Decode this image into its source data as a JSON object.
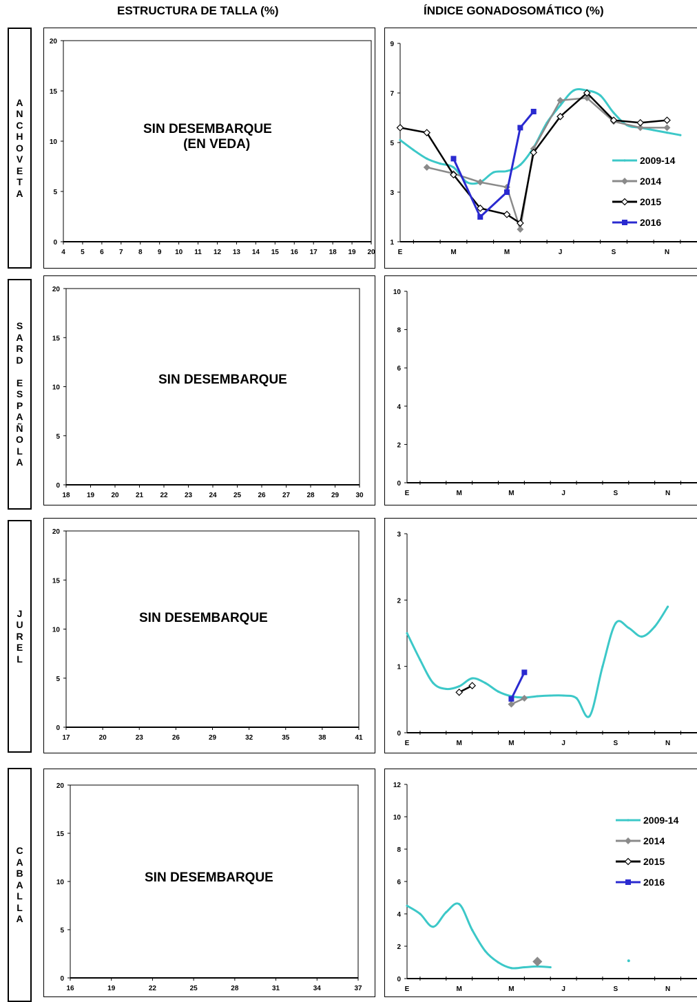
{
  "headers": {
    "left": "ESTRUCTURA DE TALLA (%)",
    "right": "ÍNDICE GONADOSOMÁTICO (%)"
  },
  "species": [
    "A\nN\nC\nH\nO\nV\nE\nT\nA",
    "S\nA\nR\nD\n\nE\nS\nP\nA\nÑ\nO\nL\nA",
    "J\nU\nR\nE\nL",
    "C\nA\nB\nA\nL\nL\nA"
  ],
  "talla_notes": [
    "SIN DESEMBARQUE\n     (EN VEDA)",
    "SIN DESEMBARQUE",
    "SIN DESEMBARQUE",
    "SIN DESEMBARQUE"
  ],
  "series_colors": {
    "2009-14": "#3cc8c8",
    "2014": "#8a8a8a",
    "2015": "#000000",
    "2016": "#2a2ad0"
  },
  "chart_data": [
    {
      "type": "line",
      "title": "ESTRUCTURA DE TALLA (%)",
      "ylim": [
        0,
        20
      ],
      "yticks": [
        0,
        5,
        10,
        15,
        20
      ],
      "categories": [
        "4",
        "5",
        "6",
        "7",
        "8",
        "9",
        "10",
        "11",
        "12",
        "13",
        "14",
        "15",
        "16",
        "17",
        "18",
        "19",
        "20"
      ],
      "series": []
    },
    {
      "type": "line",
      "title": "ÍNDICE GONADOSOMÁTICO (%)",
      "ylim": [
        1,
        9
      ],
      "yticks": [
        1,
        3,
        5,
        7,
        9
      ],
      "xlim": [
        1,
        12.2
      ],
      "xticks": [
        "E",
        "M",
        "M",
        "J",
        "S",
        "N"
      ],
      "legend": "right",
      "series": [
        {
          "name": "2009-14",
          "values": [
            [
              1,
              5.1
            ],
            [
              1.5,
              4.7
            ],
            [
              2,
              4.35
            ],
            [
              2.5,
              4.15
            ],
            [
              3,
              4.0
            ],
            [
              3.5,
              3.4
            ],
            [
              4,
              3.4
            ],
            [
              4.5,
              3.8
            ],
            [
              5,
              3.85
            ],
            [
              5.5,
              4.1
            ],
            [
              6,
              4.8
            ],
            [
              6.5,
              5.8
            ],
            [
              7,
              6.5
            ],
            [
              7.5,
              7.1
            ],
            [
              8,
              7.1
            ],
            [
              8.5,
              6.9
            ],
            [
              9,
              6.2
            ],
            [
              9.5,
              5.7
            ],
            [
              10,
              5.6
            ],
            [
              10.5,
              5.5
            ],
            [
              11,
              5.4
            ],
            [
              11.5,
              5.3
            ]
          ]
        },
        {
          "name": "2014",
          "values": [
            [
              2,
              4.0
            ],
            [
              3,
              3.75
            ],
            [
              4,
              3.4
            ],
            [
              5,
              3.2
            ],
            [
              5.5,
              1.5
            ],
            [
              6,
              4.75
            ],
            [
              7,
              6.7
            ],
            [
              8,
              6.8
            ],
            [
              9,
              5.85
            ],
            [
              10,
              5.6
            ],
            [
              11,
              5.6
            ]
          ]
        },
        {
          "name": "2015",
          "values": [
            [
              1,
              5.6
            ],
            [
              2,
              5.4
            ],
            [
              3,
              3.7
            ],
            [
              4,
              2.35
            ],
            [
              5,
              2.1
            ],
            [
              5.5,
              1.75
            ],
            [
              6,
              4.6
            ],
            [
              7,
              6.05
            ],
            [
              8,
              7.0
            ],
            [
              9,
              5.9
            ],
            [
              10,
              5.8
            ],
            [
              11,
              5.9
            ]
          ]
        },
        {
          "name": "2016",
          "values": [
            [
              3,
              4.35
            ],
            [
              4,
              2.0
            ],
            [
              5,
              3.0
            ],
            [
              5.5,
              5.6
            ],
            [
              6,
              6.25
            ]
          ]
        }
      ]
    },
    {
      "type": "line",
      "title": "ESTRUCTURA DE TALLA (%)",
      "ylim": [
        0,
        20
      ],
      "yticks": [
        0,
        5,
        10,
        15,
        20
      ],
      "categories": [
        "18",
        "19",
        "20",
        "21",
        "22",
        "23",
        "24",
        "25",
        "26",
        "27",
        "28",
        "29",
        "30"
      ],
      "series": []
    },
    {
      "type": "line",
      "title": "ÍNDICE GONADOSOMÁTICO (%)",
      "ylim": [
        0,
        10
      ],
      "yticks": [
        0,
        2,
        4,
        6,
        8,
        10
      ],
      "xlim": [
        1,
        12.2
      ],
      "xticks": [
        "E",
        "M",
        "M",
        "J",
        "S",
        "N"
      ],
      "series": []
    },
    {
      "type": "line",
      "title": "ESTRUCTURA DE TALLA (%)",
      "ylim": [
        0,
        20
      ],
      "yticks": [
        0,
        5,
        10,
        15,
        20
      ],
      "categories": [
        "17",
        "20",
        "23",
        "26",
        "29",
        "32",
        "35",
        "38",
        "41"
      ],
      "series": []
    },
    {
      "type": "line",
      "title": "ÍNDICE GONADOSOMÁTICO (%)",
      "ylim": [
        0,
        3
      ],
      "yticks": [
        0,
        1,
        2,
        3
      ],
      "xlim": [
        1,
        12.2
      ],
      "xticks": [
        "E",
        "M",
        "M",
        "J",
        "S",
        "N"
      ],
      "series": [
        {
          "name": "2009-14",
          "values": [
            [
              1,
              1.5
            ],
            [
              1.5,
              1.1
            ],
            [
              2,
              0.75
            ],
            [
              2.5,
              0.66
            ],
            [
              3,
              0.7
            ],
            [
              3.5,
              0.82
            ],
            [
              4,
              0.75
            ],
            [
              4.5,
              0.62
            ],
            [
              5,
              0.55
            ],
            [
              5.5,
              0.53
            ],
            [
              6,
              0.55
            ],
            [
              6.5,
              0.56
            ],
            [
              7,
              0.56
            ],
            [
              7.5,
              0.52
            ],
            [
              8,
              0.25
            ],
            [
              8.5,
              1.0
            ],
            [
              9,
              1.65
            ],
            [
              9.5,
              1.58
            ],
            [
              10,
              1.45
            ],
            [
              10.5,
              1.6
            ],
            [
              11,
              1.9
            ]
          ]
        },
        {
          "name": "2014",
          "values": [
            [
              5,
              0.43
            ],
            [
              5.5,
              0.52
            ]
          ]
        },
        {
          "name": "2015",
          "values": [
            [
              3,
              0.61
            ],
            [
              3.5,
              0.71
            ]
          ]
        },
        {
          "name": "2016",
          "values": [
            [
              5,
              0.51
            ],
            [
              5.5,
              0.91
            ]
          ]
        }
      ]
    },
    {
      "type": "line",
      "title": "ESTRUCTURA DE TALLA (%)",
      "ylim": [
        0,
        20
      ],
      "yticks": [
        0,
        5,
        10,
        15,
        20
      ],
      "categories": [
        "16",
        "19",
        "22",
        "25",
        "28",
        "31",
        "34",
        "37"
      ],
      "series": []
    },
    {
      "type": "line",
      "title": "ÍNDICE GONADOSOMÁTICO (%)",
      "ylim": [
        0,
        12
      ],
      "yticks": [
        0,
        2,
        4,
        6,
        8,
        10,
        12
      ],
      "xlim": [
        1,
        12.2
      ],
      "xticks": [
        "E",
        "M",
        "M",
        "J",
        "S",
        "N"
      ],
      "legend": "top-right",
      "series": [
        {
          "name": "2009-14",
          "values": [
            [
              1,
              4.5
            ],
            [
              1.5,
              4.0
            ],
            [
              2,
              3.2
            ],
            [
              2.5,
              4.1
            ],
            [
              3,
              4.6
            ],
            [
              3.5,
              3.0
            ],
            [
              4,
              1.7
            ],
            [
              4.5,
              1.0
            ],
            [
              5,
              0.65
            ],
            [
              5.5,
              0.7
            ],
            [
              6,
              0.75
            ],
            [
              6.5,
              0.7
            ]
          ],
          "points": [
            [
              9.5,
              1.1
            ]
          ]
        },
        {
          "name": "2014",
          "values": [],
          "points": [
            [
              6,
              1.05
            ]
          ]
        },
        {
          "name": "2015",
          "values": []
        },
        {
          "name": "2016",
          "values": []
        }
      ]
    }
  ]
}
